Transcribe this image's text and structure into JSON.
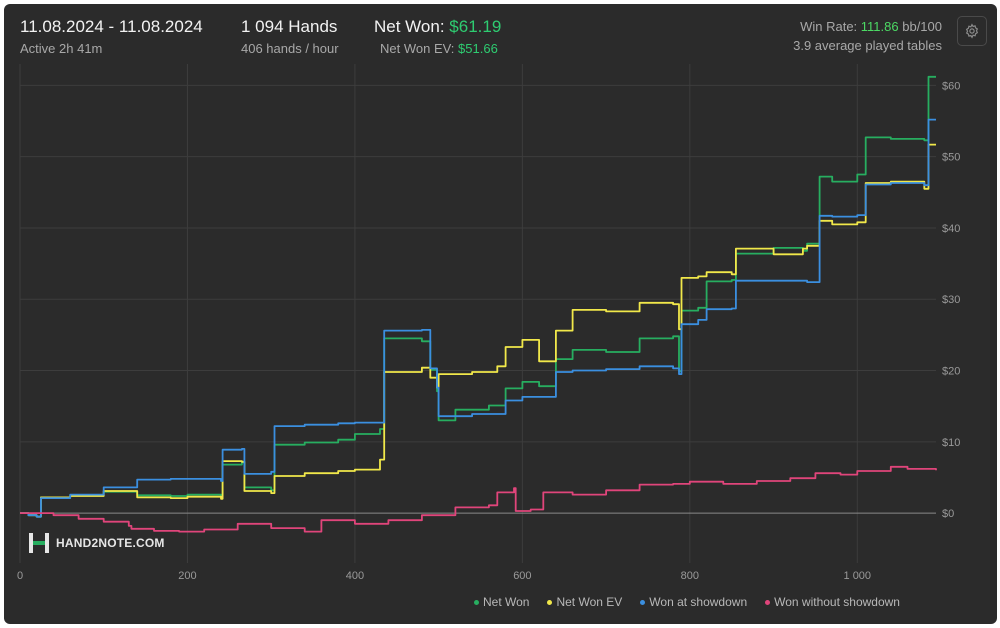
{
  "header": {
    "date_range": "11.08.2024 - 11.08.2024",
    "active": "Active 2h 41m",
    "hands": "1 094 Hands",
    "hands_per_hour": "406 hands / hour",
    "net_won_label": "Net Won: ",
    "net_won_value": "$61.19",
    "net_won_ev_label": "Net Won  EV: ",
    "net_won_ev_value": "$51.66",
    "win_rate_label": "Win Rate: ",
    "win_rate_value": "111.86",
    "win_rate_unit": " bb/100",
    "tables": "3.9 average played tables"
  },
  "settings_icon": "gear-icon",
  "logo": {
    "text": "HAND2NOTE.COM",
    "icon": "h2n-logo-icon"
  },
  "colors": {
    "background": "#2b2b2b",
    "grid": "#3d3d3d",
    "zero_line": "#8a8a8a",
    "net_won": "#27ae60",
    "net_won_ev": "#f1e84a",
    "won_showdown": "#3b8fe0",
    "won_without_showdown": "#e0457b"
  },
  "chart_data": {
    "type": "line",
    "xlim": [
      0,
      1094
    ],
    "ylim": [
      -7,
      63
    ],
    "x_ticks": [
      {
        "v": 0,
        "label": "0"
      },
      {
        "v": 200,
        "label": "200"
      },
      {
        "v": 400,
        "label": "400"
      },
      {
        "v": 600,
        "label": "600"
      },
      {
        "v": 800,
        "label": "800"
      },
      {
        "v": 1000,
        "label": "1 000"
      }
    ],
    "y_ticks": [
      {
        "v": 0,
        "label": "$0"
      },
      {
        "v": 10,
        "label": "$10"
      },
      {
        "v": 20,
        "label": "$20"
      },
      {
        "v": 30,
        "label": "$30"
      },
      {
        "v": 40,
        "label": "$40"
      },
      {
        "v": 50,
        "label": "$50"
      },
      {
        "v": 60,
        "label": "$60"
      }
    ],
    "legend_position": "bottom-right",
    "series": [
      {
        "name": "Net Won",
        "key": "net_won",
        "points": [
          [
            0,
            0
          ],
          [
            10,
            -0.3
          ],
          [
            20,
            -0.5
          ],
          [
            25,
            2.2
          ],
          [
            60,
            2.5
          ],
          [
            100,
            3.0
          ],
          [
            140,
            2.5
          ],
          [
            180,
            2.4
          ],
          [
            200,
            2.6
          ],
          [
            240,
            2.4
          ],
          [
            242,
            6.8
          ],
          [
            265,
            7.1
          ],
          [
            268,
            3.6
          ],
          [
            300,
            3.2
          ],
          [
            304,
            9.6
          ],
          [
            340,
            9.9
          ],
          [
            380,
            10.3
          ],
          [
            400,
            11.1
          ],
          [
            430,
            11.8
          ],
          [
            435,
            24.5
          ],
          [
            480,
            24.1
          ],
          [
            490,
            20.1
          ],
          [
            498,
            17.1
          ],
          [
            500,
            13.0
          ],
          [
            520,
            14.5
          ],
          [
            560,
            15.1
          ],
          [
            580,
            17.5
          ],
          [
            600,
            18.4
          ],
          [
            620,
            17.8
          ],
          [
            640,
            21.6
          ],
          [
            660,
            22.9
          ],
          [
            700,
            22.6
          ],
          [
            740,
            24.5
          ],
          [
            780,
            24.8
          ],
          [
            787,
            19.9
          ],
          [
            790,
            28.4
          ],
          [
            810,
            28.8
          ],
          [
            820,
            32.5
          ],
          [
            850,
            32.7
          ],
          [
            855,
            36.4
          ],
          [
            900,
            37.2
          ],
          [
            935,
            36.8
          ],
          [
            940,
            37.8
          ],
          [
            955,
            47.2
          ],
          [
            970,
            46.5
          ],
          [
            1000,
            47.5
          ],
          [
            1010,
            52.7
          ],
          [
            1040,
            52.5
          ],
          [
            1080,
            52.3
          ],
          [
            1085,
            61.2
          ],
          [
            1094,
            61.2
          ]
        ]
      },
      {
        "name": "Net Won  EV",
        "key": "net_won_ev",
        "points": [
          [
            0,
            0
          ],
          [
            10,
            -0.3
          ],
          [
            20,
            -0.5
          ],
          [
            25,
            2.2
          ],
          [
            60,
            2.4
          ],
          [
            100,
            3.1
          ],
          [
            140,
            2.2
          ],
          [
            180,
            2.1
          ],
          [
            200,
            2.3
          ],
          [
            240,
            2.0
          ],
          [
            242,
            7.3
          ],
          [
            265,
            7.2
          ],
          [
            268,
            3.1
          ],
          [
            300,
            2.8
          ],
          [
            304,
            5.2
          ],
          [
            340,
            5.6
          ],
          [
            380,
            5.9
          ],
          [
            400,
            6.1
          ],
          [
            430,
            7.5
          ],
          [
            435,
            19.8
          ],
          [
            480,
            20.4
          ],
          [
            490,
            19.0
          ],
          [
            498,
            17.6
          ],
          [
            500,
            19.5
          ],
          [
            540,
            19.8
          ],
          [
            570,
            20.6
          ],
          [
            580,
            23.3
          ],
          [
            600,
            24.3
          ],
          [
            620,
            21.3
          ],
          [
            640,
            25.6
          ],
          [
            660,
            28.5
          ],
          [
            700,
            28.3
          ],
          [
            740,
            29.5
          ],
          [
            780,
            29.3
          ],
          [
            787,
            25.8
          ],
          [
            790,
            33.0
          ],
          [
            810,
            33.2
          ],
          [
            820,
            33.8
          ],
          [
            850,
            33.5
          ],
          [
            855,
            37.1
          ],
          [
            900,
            36.3
          ],
          [
            935,
            37.1
          ],
          [
            940,
            37.5
          ],
          [
            955,
            41.0
          ],
          [
            970,
            40.5
          ],
          [
            1000,
            40.8
          ],
          [
            1010,
            46.3
          ],
          [
            1040,
            46.5
          ],
          [
            1080,
            45.5
          ],
          [
            1085,
            51.7
          ],
          [
            1094,
            51.7
          ]
        ]
      },
      {
        "name": "Won at showdown",
        "key": "won_showdown",
        "points": [
          [
            0,
            0
          ],
          [
            10,
            -0.3
          ],
          [
            20,
            -0.5
          ],
          [
            25,
            2.1
          ],
          [
            60,
            2.6
          ],
          [
            100,
            3.6
          ],
          [
            140,
            4.7
          ],
          [
            180,
            4.8
          ],
          [
            200,
            4.8
          ],
          [
            240,
            4.5
          ],
          [
            242,
            8.9
          ],
          [
            265,
            9.0
          ],
          [
            268,
            5.5
          ],
          [
            300,
            5.8
          ],
          [
            304,
            12.2
          ],
          [
            340,
            12.4
          ],
          [
            380,
            12.6
          ],
          [
            400,
            12.7
          ],
          [
            430,
            12.7
          ],
          [
            435,
            25.6
          ],
          [
            480,
            25.7
          ],
          [
            490,
            20.3
          ],
          [
            498,
            17.6
          ],
          [
            500,
            13.6
          ],
          [
            540,
            13.9
          ],
          [
            580,
            15.8
          ],
          [
            600,
            16.3
          ],
          [
            620,
            16.3
          ],
          [
            640,
            19.8
          ],
          [
            660,
            20.0
          ],
          [
            700,
            20.2
          ],
          [
            740,
            20.6
          ],
          [
            780,
            20.3
          ],
          [
            787,
            19.5
          ],
          [
            790,
            26.5
          ],
          [
            810,
            27.1
          ],
          [
            820,
            28.6
          ],
          [
            850,
            28.7
          ],
          [
            855,
            32.6
          ],
          [
            900,
            32.6
          ],
          [
            935,
            32.6
          ],
          [
            940,
            32.4
          ],
          [
            955,
            41.7
          ],
          [
            970,
            41.6
          ],
          [
            1000,
            41.8
          ],
          [
            1010,
            46.1
          ],
          [
            1040,
            46.3
          ],
          [
            1080,
            46.0
          ],
          [
            1085,
            55.2
          ],
          [
            1094,
            55.2
          ]
        ]
      },
      {
        "name": "Won without showdown",
        "key": "won_without_showdown",
        "points": [
          [
            0,
            0
          ],
          [
            20,
            0
          ],
          [
            40,
            -0.3
          ],
          [
            70,
            -0.8
          ],
          [
            100,
            -1.2
          ],
          [
            130,
            -1.8
          ],
          [
            133,
            -2.2
          ],
          [
            160,
            -2.5
          ],
          [
            190,
            -2.6
          ],
          [
            220,
            -2.3
          ],
          [
            260,
            -1.5
          ],
          [
            300,
            -2.1
          ],
          [
            340,
            -2.6
          ],
          [
            360,
            -1.0
          ],
          [
            400,
            -1.5
          ],
          [
            440,
            -1.0
          ],
          [
            480,
            -0.3
          ],
          [
            520,
            0.8
          ],
          [
            560,
            1.1
          ],
          [
            570,
            2.9
          ],
          [
            590,
            3.5
          ],
          [
            592,
            0.3
          ],
          [
            610,
            0.5
          ],
          [
            625,
            2.9
          ],
          [
            660,
            2.6
          ],
          [
            700,
            3.2
          ],
          [
            740,
            4.0
          ],
          [
            780,
            4.1
          ],
          [
            800,
            4.4
          ],
          [
            840,
            4.1
          ],
          [
            880,
            4.5
          ],
          [
            920,
            4.9
          ],
          [
            950,
            5.6
          ],
          [
            980,
            5.4
          ],
          [
            1000,
            5.9
          ],
          [
            1040,
            6.5
          ],
          [
            1060,
            6.2
          ],
          [
            1094,
            6.0
          ]
        ]
      }
    ]
  }
}
